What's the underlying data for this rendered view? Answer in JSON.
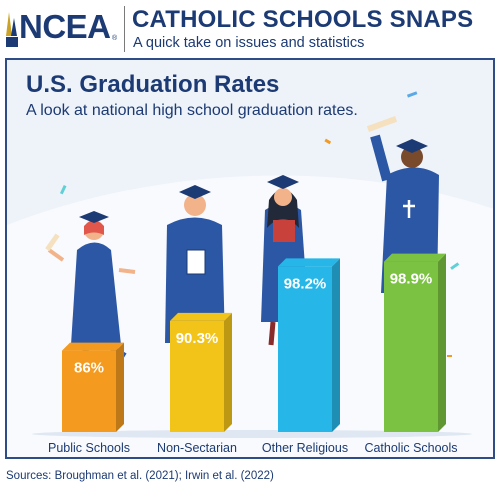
{
  "header": {
    "logo_text": "NCEA",
    "logo_mark": "®",
    "title": "CATHOLIC SCHOOLS SNAPS",
    "subtitle": "A quick take on issues and statistics"
  },
  "colors": {
    "navy": "#1c3a73",
    "bar_public": "#f39a1f",
    "bar_nonsectarian": "#f2c318",
    "bar_other_religious": "#27b6e8",
    "bar_catholic": "#7cc242"
  },
  "chart_data": {
    "type": "bar",
    "title": "U.S. Graduation Rates",
    "subtitle": "A look at national high school graduation rates.",
    "categories": [
      "Public Schools",
      "Non-Sectarian",
      "Other Religious",
      "Catholic Schools"
    ],
    "values": [
      86,
      90.3,
      98.2,
      98.9
    ],
    "value_labels": [
      "86%",
      "90.3%",
      "98.2%",
      "98.9%"
    ],
    "unit": "%"
  },
  "footer": {
    "sources": "Sources: Broughman et al. (2021); Irwin et al. (2022)"
  }
}
